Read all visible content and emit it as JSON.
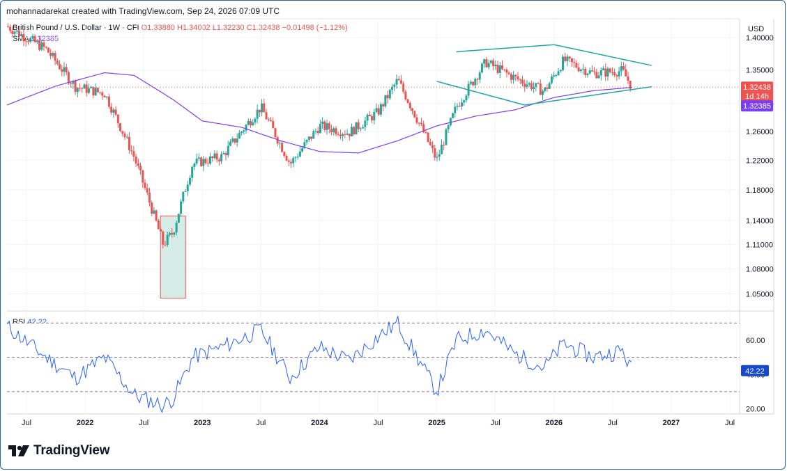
{
  "header": {
    "created_by": "mohannadarekat created with TradingView.com, Sep 24, 2026 07:09 UTC"
  },
  "legend": {
    "symbol": "British Pound / U.S. Dollar · 1W · CFI",
    "open": "O1.33880",
    "high": "H1.34002",
    "low": "L1.32230",
    "close": "C1.32438",
    "change": "−0.01498 (−1.12%)",
    "sma_label": "SMA",
    "sma_value": "1.32385",
    "rsi_label": "RSI",
    "rsi_value": "42.22"
  },
  "price_axis": {
    "currency": "USD",
    "ticks": [
      "1.40000",
      "1.35000",
      "1.30000",
      "1.26000",
      "1.22000",
      "1.18000",
      "1.14000",
      "1.11000",
      "1.08000",
      "1.05000"
    ],
    "last_price": "1.32438",
    "countdown": "1d 14h",
    "sma_badge": "1.32385"
  },
  "rsi_axis": {
    "ticks": [
      "60.00",
      "40.00",
      "20.00"
    ],
    "badge": "42.22"
  },
  "time_axis": [
    "Jul",
    "2022",
    "Jul",
    "2023",
    "Jul",
    "2024",
    "Jul",
    "2025",
    "Jul",
    "2026",
    "Jul",
    "2027",
    "Jul"
  ],
  "logo_text": "TradingView",
  "colors": {
    "up": "#26a69a",
    "down": "#ef5350",
    "sma": "#7b3ff2",
    "rsi": "#2962ff",
    "trend": "#1fa5a5"
  },
  "chart_data": [
    {
      "type": "candlestick",
      "title": "British Pound / U.S. Dollar · 1W · CFI",
      "x_range": [
        "2021-05",
        "2027-08"
      ],
      "ylim": [
        1.03,
        1.43
      ],
      "log_scale": true,
      "grid": true,
      "series": [
        {
          "name": "SMA",
          "x": [
            "2021-05",
            "2021-10",
            "2022-03",
            "2022-06",
            "2022-10",
            "2023-01",
            "2023-05",
            "2023-09",
            "2024-01",
            "2024-05",
            "2024-09",
            "2025-01",
            "2025-05",
            "2025-09",
            "2026-01",
            "2026-05",
            "2026-09"
          ],
          "values": [
            1.298,
            1.326,
            1.346,
            1.342,
            1.306,
            1.275,
            1.266,
            1.247,
            1.232,
            1.23,
            1.247,
            1.268,
            1.282,
            1.291,
            1.309,
            1.319,
            1.324
          ]
        },
        {
          "name": "close",
          "x": [
            "2021-05",
            "2021-09",
            "2021-12",
            "2022-03",
            "2022-06",
            "2022-09",
            "2022-10",
            "2022-12",
            "2023-03",
            "2023-07",
            "2023-10",
            "2024-01",
            "2024-04",
            "2024-07",
            "2024-09",
            "2025-01",
            "2025-03",
            "2025-06",
            "2025-09",
            "2025-12",
            "2026-02",
            "2026-05",
            "2026-08",
            "2026-09"
          ],
          "values": [
            1.418,
            1.382,
            1.325,
            1.315,
            1.225,
            1.11,
            1.125,
            1.215,
            1.225,
            1.295,
            1.215,
            1.268,
            1.258,
            1.288,
            1.335,
            1.22,
            1.295,
            1.362,
            1.338,
            1.318,
            1.365,
            1.345,
            1.349,
            1.324
          ]
        }
      ],
      "trendlines": "symmetrical triangle (two converging lines)",
      "annotation": "highlighted box around the 2022 low"
    },
    {
      "type": "line",
      "series": [
        {
          "name": "RSI",
          "x": [
            "2021-05",
            "2021-09",
            "2021-12",
            "2022-03",
            "2022-06",
            "2022-09",
            "2022-10",
            "2022-12",
            "2023-03",
            "2023-07",
            "2023-10",
            "2024-01",
            "2024-04",
            "2024-07",
            "2024-09",
            "2025-01",
            "2025-03",
            "2025-06",
            "2025-09",
            "2025-12",
            "2026-02",
            "2026-05",
            "2026-08",
            "2026-09"
          ],
          "values": [
            68,
            50,
            38,
            50,
            28,
            22,
            26,
            50,
            56,
            66,
            38,
            56,
            48,
            62,
            70,
            30,
            60,
            66,
            52,
            44,
            58,
            50,
            54,
            42.22
          ]
        }
      ],
      "ylim": [
        17,
        77
      ],
      "levels": [
        30,
        50,
        70
      ]
    }
  ]
}
